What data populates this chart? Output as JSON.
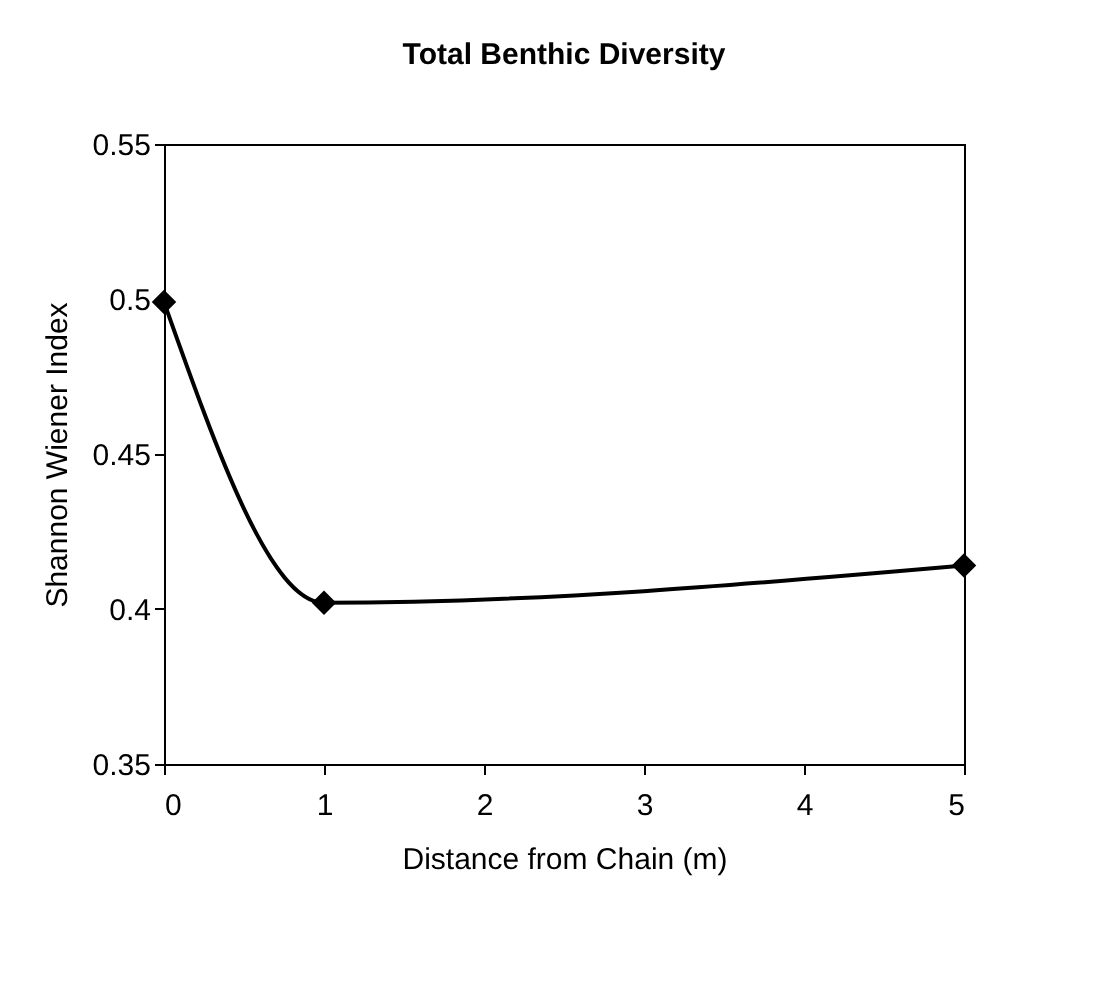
{
  "chart_data": {
    "type": "line",
    "title": "Total Benthic Diversity",
    "xlabel": "Distance from Chain (m)",
    "ylabel": "Shannon Wiener Index",
    "x": [
      0,
      1,
      5
    ],
    "series": [
      {
        "color": "#000000",
        "values": [
          0.499,
          0.402,
          0.414
        ]
      }
    ],
    "xlim": [
      0,
      5
    ],
    "xticks": [
      0,
      1,
      2,
      3,
      4,
      5
    ],
    "ylim": [
      0.35,
      0.55
    ],
    "yticks": [
      0.35,
      0.4,
      0.45,
      0.5,
      0.55
    ],
    "marker": "diamond",
    "grid": false,
    "legend": false
  }
}
